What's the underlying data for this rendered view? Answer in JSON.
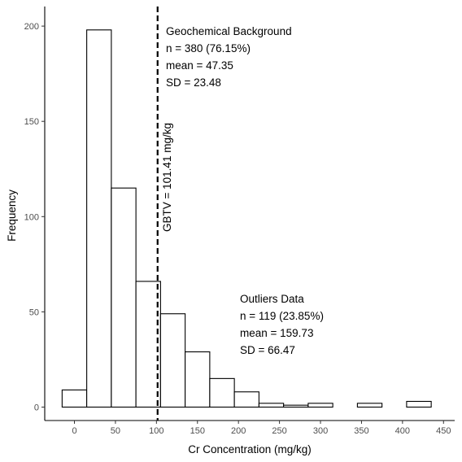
{
  "chart_data": {
    "type": "bar",
    "subtype": "histogram",
    "xlabel": "Cr Concentration (mg/kg)",
    "ylabel": "Frequency",
    "xlim": [
      -30,
      450
    ],
    "ylim": [
      0,
      210
    ],
    "xticks": [
      0,
      50,
      100,
      150,
      200,
      250,
      300,
      350,
      400,
      450
    ],
    "yticks": [
      0,
      50,
      100,
      150,
      200
    ],
    "grid": false,
    "bin_width": 30,
    "bins": [
      {
        "start": -15,
        "end": 15,
        "count": 9
      },
      {
        "start": 15,
        "end": 45,
        "count": 198
      },
      {
        "start": 45,
        "end": 75,
        "count": 115
      },
      {
        "start": 75,
        "end": 105,
        "count": 66
      },
      {
        "start": 105,
        "end": 135,
        "count": 49
      },
      {
        "start": 135,
        "end": 165,
        "count": 29
      },
      {
        "start": 165,
        "end": 195,
        "count": 15
      },
      {
        "start": 195,
        "end": 225,
        "count": 8
      },
      {
        "start": 225,
        "end": 255,
        "count": 2
      },
      {
        "start": 255,
        "end": 285,
        "count": 1
      },
      {
        "start": 285,
        "end": 315,
        "count": 2
      },
      {
        "start": 315,
        "end": 345,
        "count": 0
      },
      {
        "start": 345,
        "end": 375,
        "count": 2
      },
      {
        "start": 375,
        "end": 405,
        "count": 0
      },
      {
        "start": 405,
        "end": 435,
        "count": 3
      }
    ],
    "threshold": {
      "value": 101.41,
      "label": "GBTV = 101.41 mg/kg",
      "style": "dashed"
    },
    "annotations": {
      "background": {
        "lines": [
          "Geochemical Background",
          "n = 380 (76.15%)",
          "mean = 47.35",
          "SD = 23.48"
        ]
      },
      "outliers": {
        "lines": [
          "Outliers Data",
          "n = 119 (23.85%)",
          "mean = 159.73",
          "SD = 66.47"
        ]
      }
    }
  }
}
